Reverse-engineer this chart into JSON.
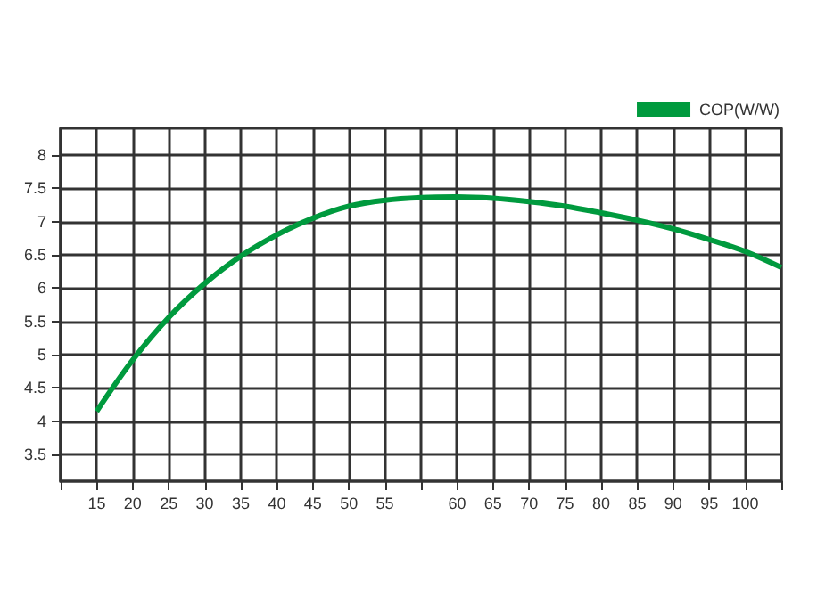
{
  "chart_data": {
    "type": "line",
    "categories": [
      null,
      "15",
      "20",
      "25",
      "30",
      "35",
      "40",
      "45",
      "50",
      "55",
      null,
      "60",
      "65",
      "70",
      "75",
      "80",
      "85",
      "90",
      "95",
      "100",
      null
    ],
    "series": [
      {
        "name": "COP(W/W)",
        "color": "#009a3e",
        "values": [
          null,
          4.15,
          4.92,
          5.56,
          6.07,
          6.48,
          6.8,
          7.05,
          7.23,
          7.32,
          7.36,
          7.37,
          7.35,
          7.3,
          7.23,
          7.13,
          7.02,
          6.89,
          6.73,
          6.55,
          6.31
        ]
      }
    ],
    "ylim": [
      3.1,
      8.4
    ],
    "yticks": [
      3.5,
      4,
      4.5,
      5,
      5.5,
      6,
      6.5,
      7,
      7.5,
      8
    ],
    "grid": true,
    "legend": "top right",
    "marker": "none",
    "line_style": "solid"
  }
}
